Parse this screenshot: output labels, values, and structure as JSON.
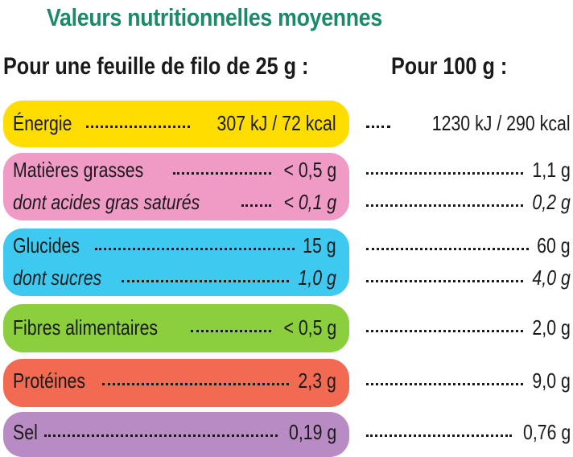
{
  "title": "Valeurs nutritionnelles moyennes",
  "header": {
    "per_sheet": "Pour une feuille de filo de 25 g :",
    "per_100g": "Pour 100 g :"
  },
  "colors": {
    "title": "#1a8a6a",
    "energie": "#ffdd00",
    "matieres_grasses": "#f09ac6",
    "glucides": "#3ec9f0",
    "fibres": "#8ccf3e",
    "proteines": "#f26a52",
    "sel": "#b98bc4"
  },
  "rows": {
    "energie": {
      "label": "Énergie",
      "per_sheet": "307 kJ / 72 kcal",
      "per_100g": "1230 kJ / 290 kcal"
    },
    "matieres_grasses": {
      "label": "Matières grasses",
      "per_sheet": "< 0,5 g",
      "per_100g": "1,1 g"
    },
    "acides_gras": {
      "label": "dont acides gras saturés",
      "per_sheet": "< 0,1 g",
      "per_100g": "0,2 g"
    },
    "glucides": {
      "label": "Glucides",
      "per_sheet": "15 g",
      "per_100g": "60 g"
    },
    "sucres": {
      "label": "dont sucres",
      "per_sheet": "1,0 g",
      "per_100g": "4,0 g"
    },
    "fibres": {
      "label": "Fibres alimentaires",
      "per_sheet": "< 0,5 g",
      "per_100g": "2,0 g"
    },
    "proteines": {
      "label": "Protéines",
      "per_sheet": "2,3 g",
      "per_100g": "9,0 g"
    },
    "sel": {
      "label": "Sel",
      "per_sheet": "0,19 g",
      "per_100g": "0,76 g"
    }
  }
}
